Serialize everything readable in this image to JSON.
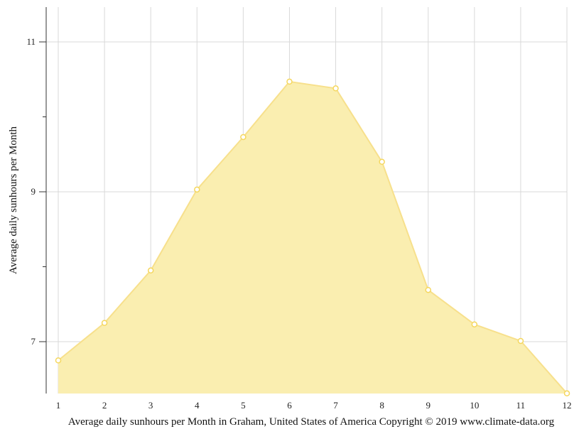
{
  "chart_data": {
    "type": "area",
    "title": "",
    "caption": "Average daily sunhours per Month in Graham, United States of America Copyright © 2019 www.climate-data.org",
    "xlabel": "",
    "ylabel": "Average daily sunhours per Month",
    "categories": [
      "1",
      "2",
      "3",
      "4",
      "5",
      "6",
      "7",
      "8",
      "9",
      "10",
      "11",
      "12"
    ],
    "series": [
      {
        "name": "Average daily sunhours",
        "values": [
          6.75,
          7.25,
          7.95,
          9.03,
          9.73,
          10.47,
          10.38,
          9.4,
          7.69,
          7.23,
          7.01,
          6.31
        ]
      }
    ],
    "ylim": [
      6.31,
      11.5
    ],
    "yticks": [
      7,
      9,
      11
    ],
    "yminor_ticks": [
      8,
      10
    ],
    "grid": true,
    "legend": "none",
    "colors": {
      "fill": "#faeeb0",
      "line": "#f7e08c",
      "marker_stroke": "#f5d75e",
      "marker_fill": "#ffffff",
      "grid": "#d9d9d9",
      "axis": "#333333"
    }
  }
}
